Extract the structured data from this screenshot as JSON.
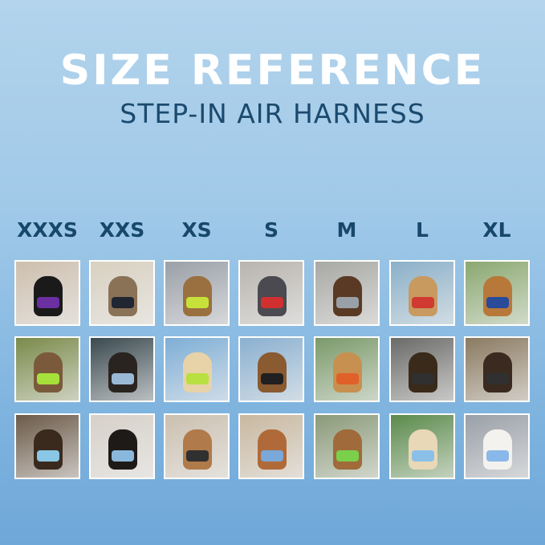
{
  "header": {
    "title": "SIZE REFERENCE",
    "subtitle": "STEP-IN AIR HARNESS"
  },
  "sizes": [
    "XXXS",
    "XXS",
    "XS",
    "S",
    "M",
    "L",
    "XL"
  ],
  "colors": {
    "title": "#ffffff",
    "subtitle": "#1b4a6e",
    "size_label": "#17486b",
    "tile_border": "#ffffff"
  },
  "photos": [
    [
      {
        "bg": "#cdbfae",
        "pet": "#1a1a1a",
        "harness": "#6a2fa0"
      },
      {
        "bg": "#7a8a4a",
        "pet": "#7a5a3a",
        "harness": "#a6e03a"
      },
      {
        "bg": "#6b5a48",
        "pet": "#3a2a1e",
        "harness": "#8ac7e6"
      }
    ],
    [
      {
        "bg": "#d8d0c0",
        "pet": "#8a7256",
        "harness": "#202733"
      },
      {
        "bg": "#3a4a50",
        "pet": "#2a2420",
        "harness": "#9ab9d6"
      },
      {
        "bg": "#d6d0c8",
        "pet": "#1d1a18",
        "harness": "#8ab8dc"
      }
    ],
    [
      {
        "bg": "#9aa0a8",
        "pet": "#9a7040",
        "harness": "#c6e23a"
      },
      {
        "bg": "#7eaed6",
        "pet": "#e8d2a8",
        "harness": "#b8e040"
      },
      {
        "bg": "#cbc0b0",
        "pet": "#b07a4a",
        "harness": "#303030"
      }
    ],
    [
      {
        "bg": "#b8b4ae",
        "pet": "#4a4a50",
        "harness": "#d03030"
      },
      {
        "bg": "#8ab0d0",
        "pet": "#8a5a30",
        "harness": "#202020"
      },
      {
        "bg": "#c8b8a0",
        "pet": "#b06a3a",
        "harness": "#7aa8d8"
      }
    ],
    [
      {
        "bg": "#a8a8a4",
        "pet": "#5a3a24",
        "harness": "#9aa0a8"
      },
      {
        "bg": "#7a9a6a",
        "pet": "#c89050",
        "harness": "#e0602a"
      },
      {
        "bg": "#8a9a78",
        "pet": "#a06a3a",
        "harness": "#7ad04a"
      }
    ],
    [
      {
        "bg": "#8ab0c8",
        "pet": "#c89a60",
        "harness": "#d03a30"
      },
      {
        "bg": "#6a6a68",
        "pet": "#3a2a1a",
        "harness": "#303030"
      },
      {
        "bg": "#5a8a4a",
        "pet": "#e8d8b8",
        "harness": "#8ac0e8"
      }
    ],
    [
      {
        "bg": "#8aa870",
        "pet": "#b8783a",
        "harness": "#2a4a9a"
      },
      {
        "bg": "#8a7a60",
        "pet": "#3a2a20",
        "harness": "#303030"
      },
      {
        "bg": "#9aa0a8",
        "pet": "#f4f2ee",
        "harness": "#8ab8e8"
      }
    ]
  ]
}
